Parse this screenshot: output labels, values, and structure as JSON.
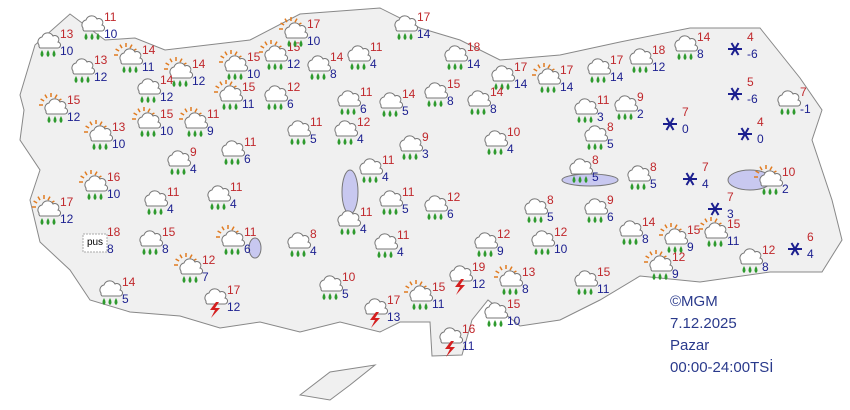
{
  "stations": [
    {
      "max": 13,
      "min": 10,
      "icon": "rain"
    },
    {
      "max": 11,
      "min": 10,
      "icon": "rain"
    },
    {
      "max": 13,
      "min": 12,
      "icon": "rain"
    },
    {
      "max": 14,
      "min": 11,
      "icon": "sunrain"
    },
    {
      "max": 14,
      "min": 12,
      "icon": "sunrain"
    },
    {
      "max": 14,
      "min": 12,
      "icon": "rain"
    },
    {
      "max": 15,
      "min": 10,
      "icon": "sunrain"
    },
    {
      "max": 15,
      "min": 12,
      "icon": "sunrain"
    },
    {
      "max": 17,
      "min": 10,
      "icon": "sunrain"
    },
    {
      "max": 14,
      "min": 8,
      "icon": "rain"
    },
    {
      "max": 11,
      "min": 4,
      "icon": "rain"
    },
    {
      "max": 17,
      "min": 14,
      "icon": "rain"
    },
    {
      "max": 18,
      "min": 14,
      "icon": "rain"
    },
    {
      "max": 17,
      "min": 14,
      "icon": "rain"
    },
    {
      "max": 17,
      "min": 14,
      "icon": "sunrain"
    },
    {
      "max": 17,
      "min": 14,
      "icon": "rain"
    },
    {
      "max": 18,
      "min": 12,
      "icon": "rain"
    },
    {
      "max": 14,
      "min": 8,
      "icon": "rain"
    },
    {
      "max": 4,
      "min": -6,
      "icon": "snow"
    },
    {
      "max": 5,
      "min": -6,
      "icon": "snow"
    },
    {
      "max": 7,
      "min": -1,
      "icon": "rain"
    },
    {
      "max": 15,
      "min": 12,
      "icon": "sunrain"
    },
    {
      "max": 13,
      "min": 10,
      "icon": "sunrain"
    },
    {
      "max": 15,
      "min": 10,
      "icon": "sunrain"
    },
    {
      "max": 11,
      "min": 9,
      "icon": "sunrain"
    },
    {
      "max": 15,
      "min": 11,
      "icon": "sunrain"
    },
    {
      "max": 12,
      "min": 6,
      "icon": "rain"
    },
    {
      "max": 11,
      "min": 6,
      "icon": "rain"
    },
    {
      "max": 14,
      "min": 5,
      "icon": "rain"
    },
    {
      "max": 15,
      "min": 8,
      "icon": "rain"
    },
    {
      "max": 14,
      "min": 8,
      "icon": "rain"
    },
    {
      "max": 11,
      "min": 3,
      "icon": "rain"
    },
    {
      "max": 9,
      "min": 2,
      "icon": "rain"
    },
    {
      "max": 7,
      "min": 0,
      "icon": "snow"
    },
    {
      "max": 4,
      "min": 0,
      "icon": "snow"
    },
    {
      "max": 11,
      "min": 6,
      "icon": "rain"
    },
    {
      "max": 11,
      "min": 5,
      "icon": "rain"
    },
    {
      "max": 12,
      "min": 4,
      "icon": "rain"
    },
    {
      "max": 9,
      "min": 3,
      "icon": "rain"
    },
    {
      "max": 10,
      "min": 4,
      "icon": "rain"
    },
    {
      "max": 8,
      "min": 5,
      "icon": "rain"
    },
    {
      "max": 9,
      "min": 4,
      "icon": "rain"
    },
    {
      "max": 16,
      "min": 10,
      "icon": "sunrain"
    },
    {
      "max": 11,
      "min": 4,
      "icon": "rain"
    },
    {
      "max": 11,
      "min": 4,
      "icon": "rain"
    },
    {
      "max": 11,
      "min": 4,
      "icon": "rain"
    },
    {
      "max": 11,
      "min": 5,
      "icon": "rain"
    },
    {
      "max": 12,
      "min": 6,
      "icon": "rain"
    },
    {
      "max": 11,
      "min": 4,
      "icon": "rain"
    },
    {
      "max": 8,
      "min": 5,
      "icon": "rain"
    },
    {
      "max": 8,
      "min": 5,
      "icon": "rain"
    },
    {
      "max": 7,
      "min": 4,
      "icon": "snow"
    },
    {
      "max": 10,
      "min": 2,
      "icon": "sunrain"
    },
    {
      "max": 17,
      "min": 12,
      "icon": "sunrain"
    },
    {
      "max": 18,
      "min": 8,
      "icon": "fog",
      "label": "pus"
    },
    {
      "max": 15,
      "min": 8,
      "icon": "rain"
    },
    {
      "max": 11,
      "min": 6,
      "icon": "sunrain"
    },
    {
      "max": 8,
      "min": 4,
      "icon": "rain"
    },
    {
      "max": 11,
      "min": 4,
      "icon": "rain"
    },
    {
      "max": 8,
      "min": 5,
      "icon": "rain"
    },
    {
      "max": 9,
      "min": 6,
      "icon": "rain"
    },
    {
      "max": 14,
      "min": 8,
      "icon": "rain"
    },
    {
      "max": 7,
      "min": 3,
      "icon": "snow"
    },
    {
      "max": 12,
      "min": 9,
      "icon": "rain"
    },
    {
      "max": 12,
      "min": 10,
      "icon": "rain"
    },
    {
      "max": 15,
      "min": 9,
      "icon": "sunrain"
    },
    {
      "max": 15,
      "min": 11,
      "icon": "sunrain"
    },
    {
      "max": 12,
      "min": 8,
      "icon": "rain"
    },
    {
      "max": 6,
      "min": 4,
      "icon": "snow"
    },
    {
      "max": 12,
      "min": 7,
      "icon": "sunrain"
    },
    {
      "max": 14,
      "min": 5,
      "icon": "rain"
    },
    {
      "max": 17,
      "min": 12,
      "icon": "thunder"
    },
    {
      "max": 10,
      "min": 5,
      "icon": "rain"
    },
    {
      "max": 17,
      "min": 13,
      "icon": "thunder"
    },
    {
      "max": 15,
      "min": 11,
      "icon": "sunrain"
    },
    {
      "max": 19,
      "min": 12,
      "icon": "thunder"
    },
    {
      "max": 13,
      "min": 8,
      "icon": "sunrain"
    },
    {
      "max": 15,
      "min": 11,
      "icon": "rain"
    },
    {
      "max": 12,
      "min": 9,
      "icon": "sunrain"
    },
    {
      "max": 15,
      "min": 10,
      "icon": "rain"
    },
    {
      "max": 16,
      "min": 11,
      "icon": "thunder"
    }
  ],
  "footer": {
    "source": "©MGM",
    "date": "7.12.2025",
    "day": "Pazar",
    "period": "00:00-24:00TSİ"
  }
}
